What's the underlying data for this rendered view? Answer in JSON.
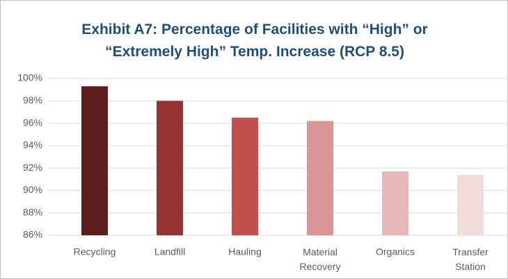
{
  "chart_data": {
    "type": "bar",
    "title": "Exhibit A7: Percentage of Facilities with “High” or “Extremely High” Temp. Increase (RCP 8.5)",
    "categories": [
      "Recycling",
      "Landfill",
      "Hauling",
      "Material Recovery",
      "Organics",
      "Transfer Station"
    ],
    "values": [
      99.3,
      98.0,
      96.5,
      96.2,
      91.7,
      91.4
    ],
    "colors": [
      "#5e1e1e",
      "#953333",
      "#c0504d",
      "#d99694",
      "#e6b8b7",
      "#f2dcdb"
    ],
    "ylim": [
      86,
      100
    ],
    "yticks": [
      {
        "value": 86,
        "label": "86%"
      },
      {
        "value": 88,
        "label": "88%"
      },
      {
        "value": 90,
        "label": "90%"
      },
      {
        "value": 92,
        "label": "92%"
      },
      {
        "value": 94,
        "label": "94%"
      },
      {
        "value": 96,
        "label": "96%"
      },
      {
        "value": 98,
        "label": "98%"
      },
      {
        "value": 100,
        "label": "100%"
      }
    ],
    "grid": true
  }
}
